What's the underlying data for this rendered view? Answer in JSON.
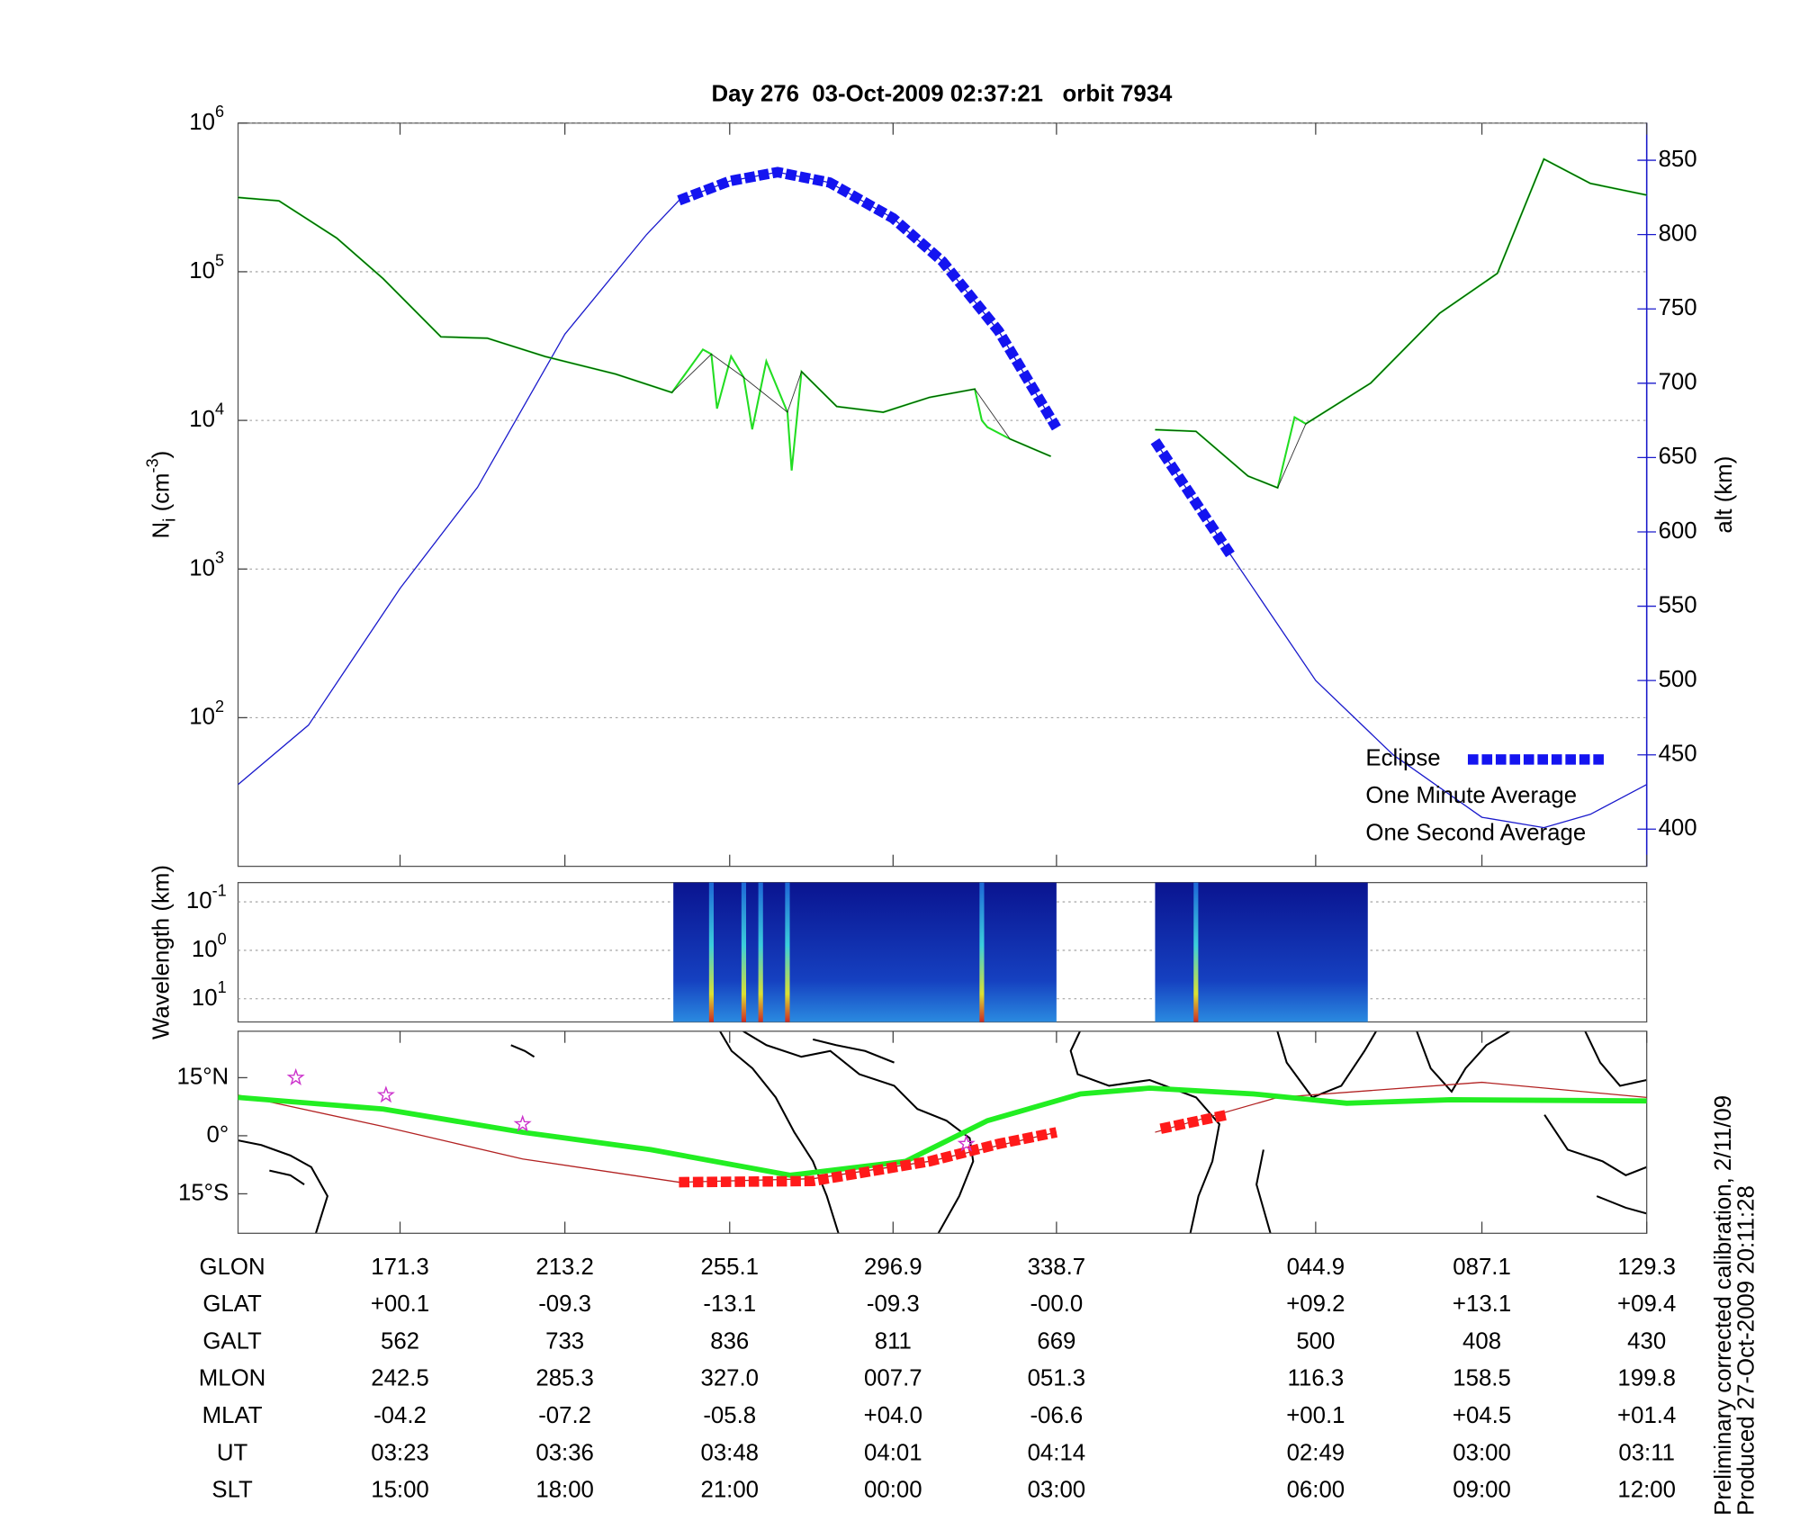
{
  "chart_data": [
    {
      "type": "line",
      "title": "Day 276  03-Oct-2009 02:37:21   orbit 7934",
      "ylabel": {
        "main": "N",
        "sub": "i",
        "unit": " (cm",
        "sup": "-3",
        "close": ")"
      },
      "y2label": "alt (km)",
      "xlim": [
        0,
        100
      ],
      "xticks": [
        11.5,
        23.2,
        34.9,
        46.5,
        58.1,
        76.5,
        88.3,
        100
      ],
      "ylim": [
        10,
        1000000
      ],
      "log_y": true,
      "yticks": [
        {
          "value": 100,
          "label": "10",
          "exponent": "2"
        },
        {
          "value": 1000,
          "label": "10",
          "exponent": "3"
        },
        {
          "value": 10000,
          "label": "10",
          "exponent": "4"
        },
        {
          "value": 100000,
          "label": "10",
          "exponent": "5"
        },
        {
          "value": 1000000,
          "label": "10",
          "exponent": "6"
        }
      ],
      "y2lim": [
        375,
        875
      ],
      "y2ticks": [
        400,
        450,
        500,
        550,
        600,
        650,
        700,
        750,
        800,
        850
      ],
      "y2color": "#1a1acc",
      "grid": true,
      "legend": "lower right",
      "series": [
        {
          "name": "Eclipse",
          "color": "#1414f0",
          "axis": "y2",
          "style": "eclipse",
          "x": [
            31.3,
            34.9,
            38.3,
            42,
            46.5,
            50,
            54,
            58.1,
            62,
            65.1,
            70.5
          ],
          "values": [
            823,
            836,
            842,
            835,
            811,
            782,
            735,
            670,
            null,
            661,
            584
          ]
        },
        {
          "name": "One Minute Average",
          "color": "#000000",
          "x": [
            0,
            2.9,
            7.0,
            10.3,
            14.4,
            17.7,
            21.8,
            26.8,
            30.8,
            33.6,
            35.9,
            39.0,
            40.0,
            42.5,
            45.8,
            49.1,
            52.3,
            54.8,
            57.7,
            62,
            65.1,
            68.0,
            71.7,
            73.8,
            75.8,
            80.4,
            85.3,
            89.4,
            92.7,
            96.0,
            100
          ],
          "values": [
            316000,
            300000,
            168600,
            89800,
            36500,
            35700,
            26900,
            20500,
            15400,
            27900,
            19450,
            11350,
            21300,
            12400,
            11350,
            14300,
            16250,
            7500,
            5730,
            null,
            8660,
            8440,
            4220,
            3520,
            9480,
            17800,
            52600,
            97500,
            573000,
            393000,
            328000
          ]
        },
        {
          "name": "One Second Average",
          "color": "#22dd22",
          "x": [
            0,
            2.9,
            7.0,
            10.3,
            14.4,
            17.7,
            21.8,
            26.8,
            30.8,
            33.0,
            33.6,
            34.0,
            35.0,
            35.9,
            36.5,
            37.5,
            39.0,
            39.3,
            40.0,
            42.5,
            45.8,
            49.1,
            52.3,
            52.8,
            53.2,
            54.8,
            57.7,
            62,
            65.1,
            68.0,
            71.7,
            73.8,
            75.0,
            75.8,
            80.4,
            85.3,
            89.4,
            92.7,
            96.0,
            100
          ],
          "values": [
            316000,
            300000,
            168600,
            89800,
            36500,
            35700,
            26900,
            20500,
            15400,
            30000,
            27900,
            12000,
            27000,
            19450,
            8700,
            25000,
            11350,
            4600,
            21300,
            12400,
            11350,
            14300,
            16250,
            10000,
            9000,
            7500,
            5730,
            null,
            8660,
            8440,
            4220,
            3520,
            10500,
            9480,
            17800,
            52600,
            97500,
            573000,
            393000,
            328000
          ]
        },
        {
          "color": "#1a1acc",
          "axis": "y2",
          "x": [
            0,
            5,
            11.5,
            17,
            23.2,
            29,
            31.3,
            34.9,
            38.3,
            42,
            46.5,
            50,
            54,
            58.1,
            62,
            65.1,
            70.5,
            76.5,
            82,
            88.3,
            92.7,
            96,
            100
          ],
          "values": [
            430,
            470,
            562,
            630,
            733,
            800,
            823,
            836,
            842,
            835,
            811,
            782,
            735,
            670,
            null,
            661,
            584,
            500,
            450,
            408,
            401,
            410,
            430
          ]
        }
      ]
    },
    {
      "type": "spectrogram",
      "ylabel": "Wavelength (km)",
      "xlim": [
        0,
        100
      ],
      "ylim": [
        0.04,
        30
      ],
      "log_y": true,
      "y_reversed": true,
      "yticks": [
        {
          "value": 0.1,
          "label": "10",
          "exponent": "-1"
        },
        {
          "value": 1,
          "label": "10",
          "exponent": "0"
        },
        {
          "value": 10,
          "label": "10",
          "exponent": "1"
        }
      ],
      "grid": true,
      "intervals": [
        [
          30.9,
          58.1
        ],
        [
          65.1,
          80.2
        ]
      ],
      "streaks": [
        33.6,
        35.9,
        37.1,
        39.0,
        52.8,
        68.0
      ]
    },
    {
      "type": "map",
      "xlim": [
        0,
        100
      ],
      "ylim": [
        -25.2,
        27
      ],
      "yticks": [
        {
          "value": 15,
          "label": "15°N"
        },
        {
          "value": 0,
          "label": "0°"
        },
        {
          "value": -15,
          "label": "15°S"
        }
      ],
      "series": [
        {
          "color": "#b22222",
          "x": [
            0,
            10.3,
            20.2,
            31.3,
            40.8,
            49.1,
            58.1,
            62,
            65.1,
            73.8,
            88.3,
            100
          ],
          "values": [
            10.5,
            2.4,
            -6,
            -12,
            -11.1,
            -6.6,
            0.9,
            null,
            0.9,
            9.9,
            13.8,
            9.9
          ]
        },
        {
          "color": "#22ee22",
          "x": [
            0,
            10.3,
            20.2,
            29.3,
            39.2,
            47.4,
            53.2,
            59.8,
            64.7,
            72.1,
            78.7,
            86.1,
            100
          ],
          "values": [
            9.9,
            6.9,
            0.9,
            -3.6,
            -10.2,
            -6.6,
            3.9,
            10.8,
            12.3,
            10.8,
            8.4,
            9.3,
            9.0
          ]
        },
        {
          "color": "#ff1a1a",
          "style": "eclipse",
          "x": [
            31.3,
            40.8,
            49.1,
            54.0,
            58.1,
            62,
            65.5,
            70.2
          ],
          "values": [
            -12,
            -11.7,
            -6.6,
            -2.1,
            0.9,
            null,
            1.8,
            5.4
          ]
        }
      ],
      "stars": {
        "color": "#cc33cc",
        "x": [
          4.1,
          10.5,
          20.2,
          51.7
        ],
        "values": [
          15,
          10.5,
          3,
          -2.1
        ]
      }
    }
  ],
  "table": {
    "row_labels": [
      "GLON",
      "GLAT",
      "GALT",
      "MLON",
      "MLAT",
      "UT",
      "SLT"
    ],
    "rows": [
      [
        "171.3",
        "213.2",
        "255.1",
        "296.9",
        "338.7",
        "044.9",
        "087.1",
        "129.3"
      ],
      [
        "+00.1",
        "-09.3",
        "-13.1",
        "-09.3",
        "-00.0",
        "+09.2",
        "+13.1",
        "+09.4"
      ],
      [
        "562",
        "733",
        "836",
        "811",
        "669",
        "500",
        "408",
        "430"
      ],
      [
        "242.5",
        "285.3",
        "327.0",
        "007.7",
        "051.3",
        "116.3",
        "158.5",
        "199.8"
      ],
      [
        "-04.2",
        "-07.2",
        "-05.8",
        "+04.0",
        "-06.6",
        "+00.1",
        "+04.5",
        "+01.4"
      ],
      [
        "03:23",
        "03:36",
        "03:48",
        "04:01",
        "04:14",
        "02:49",
        "03:00",
        "03:11"
      ],
      [
        "15:00",
        "18:00",
        "21:00",
        "00:00",
        "03:00",
        "06:00",
        "09:00",
        "12:00"
      ]
    ]
  },
  "footnotes": [
    "Preliminary corrected calibration, 2/11/09",
    "Produced 27-Oct-2009 20:11:28"
  ]
}
